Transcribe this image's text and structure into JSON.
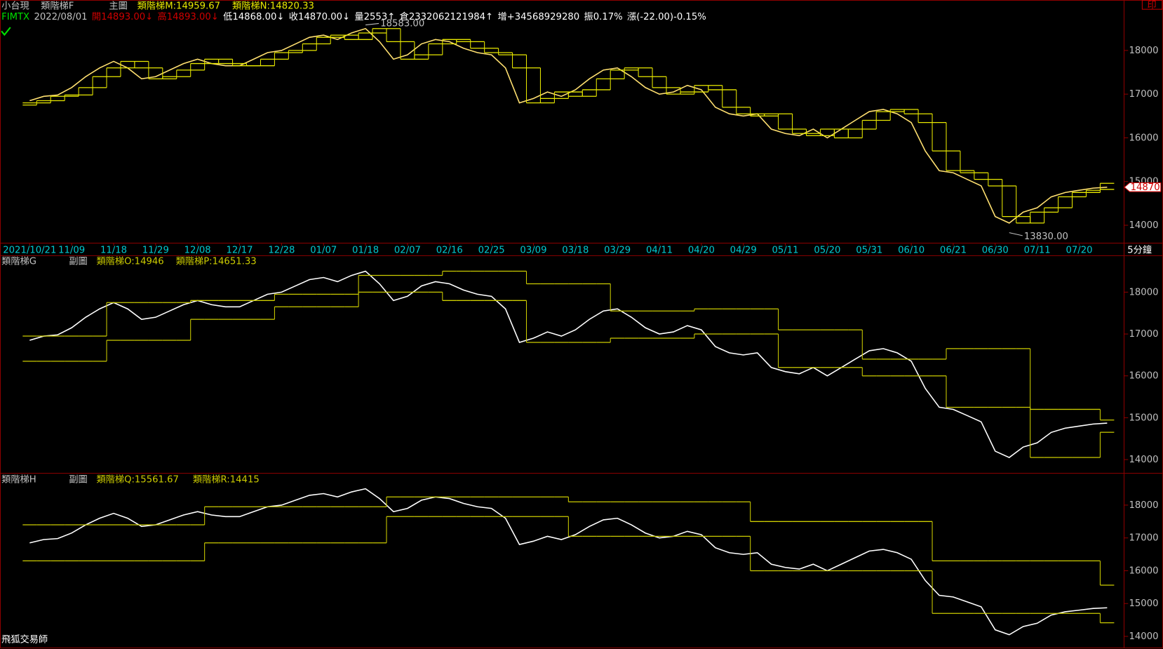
{
  "header": {
    "print_icon": "印",
    "x_unit": "5分鐘",
    "watermark": "飛狐交易師"
  },
  "quote": [
    {
      "text": "FIMTX",
      "color": "#00e000"
    },
    {
      "text": "2022/08/01",
      "color": "#c0c0c0"
    },
    {
      "text": "開14893.00↓",
      "color": "#d00000"
    },
    {
      "text": "高14893.00↓",
      "color": "#d00000"
    },
    {
      "text": "低14868.00↓",
      "color": "#ffffff"
    },
    {
      "text": "收14870.00↓",
      "color": "#ffffff"
    },
    {
      "text": "量2553↑",
      "color": "#ffffff"
    },
    {
      "text": "倉2332062121984↑",
      "color": "#ffffff"
    },
    {
      "text": "增+34568929280",
      "color": "#ffffff"
    },
    {
      "text": "振0.17%",
      "color": "#ffffff"
    },
    {
      "text": "漲(-22.00)-0.15%",
      "color": "#ffffff"
    }
  ],
  "chart_data": [
    {
      "type": "line",
      "title": "小台現",
      "indicator": "類階梯F",
      "pane_label": "主圖",
      "ylim": [
        13600,
        18900
      ],
      "yticks": [
        14000,
        15000,
        16000,
        17000,
        18000
      ],
      "last_price": 14870,
      "annotations": [
        {
          "value": 18583,
          "label": "18583.00"
        },
        {
          "value": 13830,
          "label": "13830.00"
        }
      ],
      "categories": [
        "2021/10/21",
        null,
        null,
        "11/09",
        null,
        null,
        "11/18",
        null,
        null,
        "11/29",
        null,
        null,
        "12/08",
        null,
        null,
        "12/17",
        null,
        null,
        "12/28",
        null,
        null,
        "01/07",
        null,
        null,
        "01/18",
        null,
        null,
        "02/07",
        null,
        null,
        "02/16",
        null,
        null,
        "02/25",
        null,
        null,
        "03/09",
        null,
        null,
        "03/18",
        null,
        null,
        "03/29",
        null,
        null,
        "04/11",
        null,
        null,
        "04/20",
        null,
        null,
        "04/29",
        null,
        null,
        "05/11",
        null,
        null,
        "05/20",
        null,
        null,
        "05/31",
        null,
        null,
        "06/10",
        null,
        null,
        "06/21",
        null,
        null,
        "06/30",
        null,
        null,
        "07/11",
        null,
        null,
        "07/20",
        null,
        null
      ],
      "series": [
        {
          "color": "#ffe070",
          "style": "line",
          "values": [
            16850,
            16950,
            16980,
            17150,
            17400,
            17600,
            17750,
            17600,
            17350,
            17400,
            17550,
            17700,
            17800,
            17700,
            17650,
            17650,
            17800,
            17950,
            18000,
            18150,
            18300,
            18350,
            18250,
            18400,
            18500,
            18200,
            17800,
            17900,
            18150,
            18250,
            18200,
            18050,
            17950,
            17900,
            17600,
            16800,
            16900,
            17050,
            16950,
            17100,
            17350,
            17550,
            17600,
            17400,
            17150,
            17000,
            17050,
            17200,
            17100,
            16700,
            16550,
            16500,
            16550,
            16200,
            16100,
            16050,
            16200,
            16000,
            16200,
            16400,
            16600,
            16650,
            16550,
            16350,
            15700,
            15250,
            15200,
            15050,
            14900,
            14200,
            14050,
            14300,
            14400,
            14650,
            14750,
            14800,
            14850,
            14870
          ]
        },
        {
          "name": "類階梯M:14959.67",
          "color": "#e8e800",
          "style": "step",
          "values": [
            16800,
            16850,
            16950,
            16980,
            17150,
            17400,
            17600,
            17750,
            17600,
            17350,
            17400,
            17550,
            17700,
            17800,
            17700,
            17650,
            17650,
            17800,
            17950,
            18000,
            18150,
            18300,
            18350,
            18250,
            18400,
            18500,
            18200,
            17800,
            17900,
            18150,
            18250,
            18200,
            18050,
            17950,
            17900,
            17600,
            16800,
            16900,
            17050,
            16950,
            17100,
            17350,
            17550,
            17600,
            17400,
            17150,
            17000,
            17050,
            17200,
            17100,
            16700,
            16550,
            16500,
            16550,
            16200,
            16100,
            16050,
            16200,
            16000,
            16200,
            16400,
            16600,
            16650,
            16550,
            16350,
            15700,
            15250,
            15200,
            15050,
            14900,
            14200,
            14050,
            14300,
            14400,
            14650,
            14750,
            14800,
            14959.67
          ]
        },
        {
          "name": "類階梯N:14820.33",
          "color": "#e8e800",
          "style": "step",
          "values": [
            16750,
            16800,
            16850,
            16950,
            16980,
            17150,
            17400,
            17600,
            17750,
            17600,
            17350,
            17400,
            17550,
            17700,
            17800,
            17700,
            17650,
            17650,
            17800,
            17950,
            18000,
            18150,
            18300,
            18350,
            18250,
            18400,
            18500,
            18200,
            17800,
            17900,
            18150,
            18250,
            18200,
            18050,
            17950,
            17900,
            17600,
            16800,
            16900,
            17050,
            16950,
            17100,
            17350,
            17550,
            17600,
            17400,
            17150,
            17000,
            17050,
            17200,
            17100,
            16700,
            16550,
            16500,
            16550,
            16200,
            16100,
            16050,
            16200,
            16000,
            16200,
            16400,
            16600,
            16650,
            16550,
            16350,
            15700,
            15250,
            15200,
            15050,
            14900,
            14200,
            14050,
            14300,
            14400,
            14650,
            14750,
            14820.33
          ]
        }
      ]
    },
    {
      "type": "line",
      "title": "類階梯G",
      "pane_label": "副圖",
      "ylim": [
        13700,
        18880
      ],
      "yticks": [
        14000,
        15000,
        16000,
        17000,
        18000
      ],
      "series": [
        {
          "color": "#ffffff",
          "style": "line",
          "values": [
            16850,
            16950,
            16980,
            17150,
            17400,
            17600,
            17750,
            17600,
            17350,
            17400,
            17550,
            17700,
            17800,
            17700,
            17650,
            17650,
            17800,
            17950,
            18000,
            18150,
            18300,
            18350,
            18250,
            18400,
            18500,
            18200,
            17800,
            17900,
            18150,
            18250,
            18200,
            18050,
            17950,
            17900,
            17600,
            16800,
            16900,
            17050,
            16950,
            17100,
            17350,
            17550,
            17600,
            17400,
            17150,
            17000,
            17050,
            17200,
            17100,
            16700,
            16550,
            16500,
            16550,
            16200,
            16100,
            16050,
            16200,
            16000,
            16200,
            16400,
            16600,
            16650,
            16550,
            16350,
            15700,
            15250,
            15200,
            15050,
            14900,
            14200,
            14050,
            14300,
            14400,
            14650,
            14750,
            14800,
            14850,
            14870
          ]
        },
        {
          "name": "類階梯O:14946",
          "color": "#cccc00",
          "style": "step",
          "values": [
            16950,
            16950,
            16950,
            16950,
            16950,
            16950,
            17750,
            17750,
            17750,
            17750,
            17750,
            17750,
            17800,
            17800,
            17800,
            17800,
            17800,
            17800,
            17950,
            17950,
            17950,
            17950,
            17950,
            17950,
            18400,
            18400,
            18400,
            18400,
            18400,
            18400,
            18500,
            18500,
            18500,
            18500,
            18500,
            18500,
            18200,
            18200,
            18200,
            18200,
            18200,
            18200,
            17550,
            17550,
            17550,
            17550,
            17550,
            17550,
            17600,
            17600,
            17600,
            17600,
            17600,
            17600,
            17100,
            17100,
            17100,
            17100,
            17100,
            17100,
            16400,
            16400,
            16400,
            16400,
            16400,
            16400,
            16650,
            16650,
            16650,
            16650,
            16650,
            16650,
            15200,
            15200,
            15200,
            15200,
            15200,
            14946
          ]
        },
        {
          "name": "類階梯P:14651.33",
          "color": "#cccc00",
          "style": "step",
          "values": [
            16350,
            16350,
            16350,
            16350,
            16350,
            16350,
            16850,
            16850,
            16850,
            16850,
            16850,
            16850,
            17350,
            17350,
            17350,
            17350,
            17350,
            17350,
            17650,
            17650,
            17650,
            17650,
            17650,
            17650,
            18000,
            18000,
            18000,
            18000,
            18000,
            18000,
            17800,
            17800,
            17800,
            17800,
            17800,
            17800,
            16800,
            16800,
            16800,
            16800,
            16800,
            16800,
            16900,
            16900,
            16900,
            16900,
            16900,
            16900,
            17000,
            17000,
            17000,
            17000,
            17000,
            17000,
            16200,
            16200,
            16200,
            16200,
            16200,
            16200,
            16000,
            16000,
            16000,
            16000,
            16000,
            16000,
            15250,
            15250,
            15250,
            15250,
            15250,
            15250,
            14050,
            14050,
            14050,
            14050,
            14050,
            14651.33
          ]
        }
      ]
    },
    {
      "type": "line",
      "title": "類階梯H",
      "pane_label": "副圖",
      "ylim": [
        13660,
        18960
      ],
      "yticks": [
        14000,
        15000,
        16000,
        17000,
        18000
      ],
      "series": [
        {
          "color": "#ffffff",
          "style": "line",
          "values": [
            16850,
            16950,
            16980,
            17150,
            17400,
            17600,
            17750,
            17600,
            17350,
            17400,
            17550,
            17700,
            17800,
            17700,
            17650,
            17650,
            17800,
            17950,
            18000,
            18150,
            18300,
            18350,
            18250,
            18400,
            18500,
            18200,
            17800,
            17900,
            18150,
            18250,
            18200,
            18050,
            17950,
            17900,
            17600,
            16800,
            16900,
            17050,
            16950,
            17100,
            17350,
            17550,
            17600,
            17400,
            17150,
            17000,
            17050,
            17200,
            17100,
            16700,
            16550,
            16500,
            16550,
            16200,
            16100,
            16050,
            16200,
            16000,
            16200,
            16400,
            16600,
            16650,
            16550,
            16350,
            15700,
            15250,
            15200,
            15050,
            14900,
            14200,
            14050,
            14300,
            14400,
            14650,
            14750,
            14800,
            14850,
            14870
          ]
        },
        {
          "name": "類階梯Q:15561.67",
          "color": "#cccc00",
          "style": "step",
          "values": [
            17400,
            17400,
            17400,
            17400,
            17400,
            17400,
            17400,
            17400,
            17400,
            17400,
            17400,
            17400,
            17400,
            17950,
            17950,
            17950,
            17950,
            17950,
            17950,
            17950,
            17950,
            17950,
            17950,
            17950,
            17950,
            17950,
            18250,
            18250,
            18250,
            18250,
            18250,
            18250,
            18250,
            18250,
            18250,
            18250,
            18250,
            18250,
            18250,
            18100,
            18100,
            18100,
            18100,
            18100,
            18100,
            18100,
            18100,
            18100,
            18100,
            18100,
            18100,
            18100,
            17500,
            17500,
            17500,
            17500,
            17500,
            17500,
            17500,
            17500,
            17500,
            17500,
            17500,
            17500,
            17500,
            16300,
            16300,
            16300,
            16300,
            16300,
            16300,
            16300,
            16300,
            16300,
            16300,
            16300,
            16300,
            15561.67
          ]
        },
        {
          "name": "類階梯R:14415",
          "color": "#cccc00",
          "style": "step",
          "values": [
            16300,
            16300,
            16300,
            16300,
            16300,
            16300,
            16300,
            16300,
            16300,
            16300,
            16300,
            16300,
            16300,
            16850,
            16850,
            16850,
            16850,
            16850,
            16850,
            16850,
            16850,
            16850,
            16850,
            16850,
            16850,
            16850,
            17650,
            17650,
            17650,
            17650,
            17650,
            17650,
            17650,
            17650,
            17650,
            17650,
            17650,
            17650,
            17650,
            17050,
            17050,
            17050,
            17050,
            17050,
            17050,
            17050,
            17050,
            17050,
            17050,
            17050,
            17050,
            17050,
            16000,
            16000,
            16000,
            16000,
            16000,
            16000,
            16000,
            16000,
            16000,
            16000,
            16000,
            16000,
            16000,
            14700,
            14700,
            14700,
            14700,
            14700,
            14700,
            14700,
            14700,
            14700,
            14700,
            14700,
            14700,
            14415
          ]
        }
      ]
    }
  ]
}
